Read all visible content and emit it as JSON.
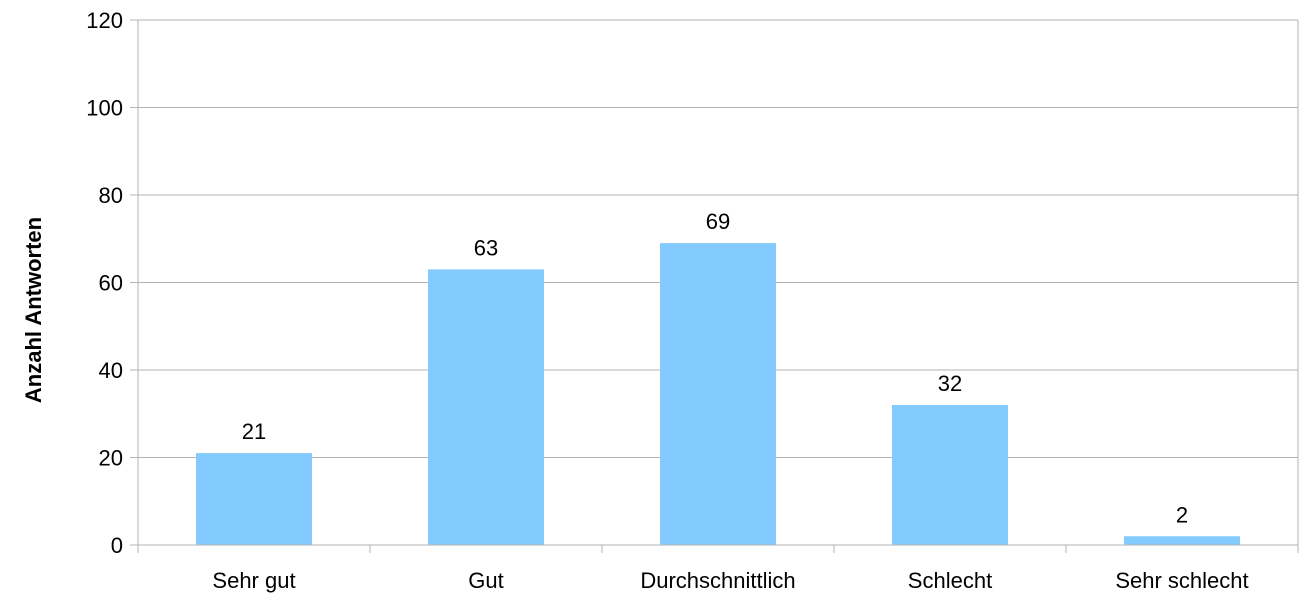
{
  "chart_data": {
    "type": "bar",
    "categories": [
      "Sehr gut",
      "Gut",
      "Durchschnittlich",
      "Schlecht",
      "Sehr schlecht"
    ],
    "values": [
      21,
      63,
      69,
      32,
      2
    ],
    "data_labels": [
      "21",
      "63",
      "69",
      "32",
      "2"
    ],
    "ylabel": "Anzahl Antworten",
    "xlabel": "",
    "ylim": [
      0,
      120
    ],
    "yticks": [
      0,
      20,
      40,
      60,
      80,
      100,
      120
    ],
    "ytick_labels": [
      "0",
      "20",
      "40",
      "60",
      "80",
      "100",
      "120"
    ],
    "grid": true,
    "legend": "none",
    "colors": {
      "bar": "#83caff",
      "grid": "#b3b3b3",
      "axis": "#b3b3b3"
    }
  }
}
